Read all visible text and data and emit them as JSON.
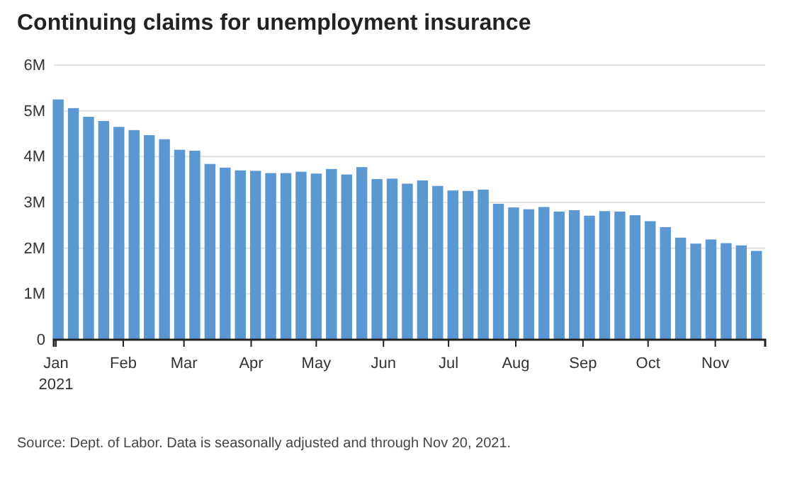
{
  "chart_data": {
    "type": "bar",
    "title": "Continuing claims for unemployment insurance",
    "annotations": [
      "Source: Dept. of Labor. Data is seasonally adjusted and through Nov 20, 2021."
    ],
    "x": [
      "2021-01-02",
      "2021-01-09",
      "2021-01-16",
      "2021-01-23",
      "2021-01-30",
      "2021-02-06",
      "2021-02-13",
      "2021-02-20",
      "2021-02-27",
      "2021-03-06",
      "2021-03-13",
      "2021-03-20",
      "2021-03-27",
      "2021-04-03",
      "2021-04-10",
      "2021-04-17",
      "2021-04-24",
      "2021-05-01",
      "2021-05-08",
      "2021-05-15",
      "2021-05-22",
      "2021-05-29",
      "2021-06-05",
      "2021-06-12",
      "2021-06-19",
      "2021-06-26",
      "2021-07-03",
      "2021-07-10",
      "2021-07-17",
      "2021-07-24",
      "2021-07-31",
      "2021-08-07",
      "2021-08-14",
      "2021-08-21",
      "2021-08-28",
      "2021-09-04",
      "2021-09-11",
      "2021-09-18",
      "2021-09-25",
      "2021-10-02",
      "2021-10-09",
      "2021-10-16",
      "2021-10-23",
      "2021-10-30",
      "2021-11-06",
      "2021-11-13",
      "2021-11-20"
    ],
    "values": [
      5250000,
      5060000,
      4870000,
      4780000,
      4650000,
      4580000,
      4470000,
      4380000,
      4150000,
      4130000,
      3840000,
      3760000,
      3700000,
      3690000,
      3640000,
      3640000,
      3670000,
      3630000,
      3730000,
      3610000,
      3770000,
      3510000,
      3520000,
      3410000,
      3480000,
      3360000,
      3260000,
      3250000,
      3280000,
      2970000,
      2890000,
      2850000,
      2900000,
      2800000,
      2830000,
      2710000,
      2810000,
      2800000,
      2720000,
      2590000,
      2460000,
      2230000,
      2100000,
      2190000,
      2110000,
      2060000,
      1940000
    ],
    "color": "#5b97d1",
    "xlim": [
      "2020-12-31",
      "2021-11-24"
    ],
    "xticks": [
      {
        "value": "2021-01-01",
        "label": "Jan\n2021"
      },
      {
        "value": "2021-02-01",
        "label": "Feb"
      },
      {
        "value": "2021-03-01",
        "label": "Mar"
      },
      {
        "value": "2021-04-01",
        "label": "Apr"
      },
      {
        "value": "2021-05-01",
        "label": "May"
      },
      {
        "value": "2021-06-01",
        "label": "Jun"
      },
      {
        "value": "2021-07-01",
        "label": "Jul"
      },
      {
        "value": "2021-08-01",
        "label": "Aug"
      },
      {
        "value": "2021-09-01",
        "label": "Sep"
      },
      {
        "value": "2021-10-01",
        "label": "Oct"
      },
      {
        "value": "2021-11-01",
        "label": "Nov"
      }
    ],
    "ylim": [
      0,
      6000000
    ],
    "yticks": [
      0,
      {
        "value": 1000000,
        "label": "1M"
      },
      {
        "value": 2000000,
        "label": "2M"
      },
      {
        "value": 3000000,
        "label": "3M"
      },
      {
        "value": 4000000,
        "label": "4M"
      },
      {
        "value": 5000000,
        "label": "5M"
      },
      {
        "value": 6000000,
        "label": "6M"
      }
    ],
    "grid": "y"
  }
}
